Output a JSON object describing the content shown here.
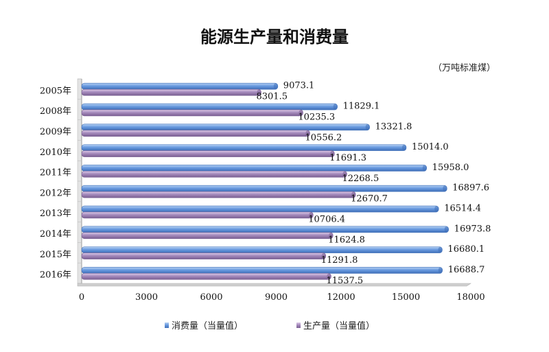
{
  "chart_data": {
    "type": "bar",
    "orientation": "horizontal",
    "title": "能源生产量和消费量",
    "unit": "（万吨标准煤）",
    "categories": [
      "2005年",
      "2008年",
      "2009年",
      "2010年",
      "2011年",
      "2012年",
      "2013年",
      "2014年",
      "2015年",
      "2016年"
    ],
    "series": [
      {
        "name": "消费量（当量值）",
        "color": "#5b8fd6",
        "values": [
          9073.1,
          11829.1,
          13321.8,
          15014.0,
          15958.0,
          16897.6,
          16514.4,
          16973.8,
          16680.1,
          16688.7
        ],
        "labels": [
          "9073.1",
          "11829.1",
          "13321.8",
          "15014.0",
          "15958.0",
          "16897.6",
          "16514.4",
          "16973.8",
          "16680.1",
          "16688.7"
        ]
      },
      {
        "name": "生产量（当量值）",
        "color": "#9a7fb0",
        "values": [
          8301.5,
          10235.3,
          10556.2,
          11691.3,
          12268.5,
          12670.7,
          10706.4,
          11624.8,
          11291.8,
          11537.5
        ],
        "labels": [
          "8301.5",
          "10235.3",
          "10556.2",
          "11691.3",
          "12268.5",
          "12670.7",
          "10706.4",
          "11624.8",
          "11291.8",
          "11537.5"
        ]
      }
    ],
    "xlim": [
      0,
      18000
    ],
    "xticks": [
      "0",
      "3000",
      "6000",
      "9000",
      "12000",
      "15000",
      "18000"
    ],
    "xtick_values": [
      0,
      3000,
      6000,
      9000,
      12000,
      15000,
      18000
    ],
    "grid": false,
    "legend_position": "bottom"
  }
}
